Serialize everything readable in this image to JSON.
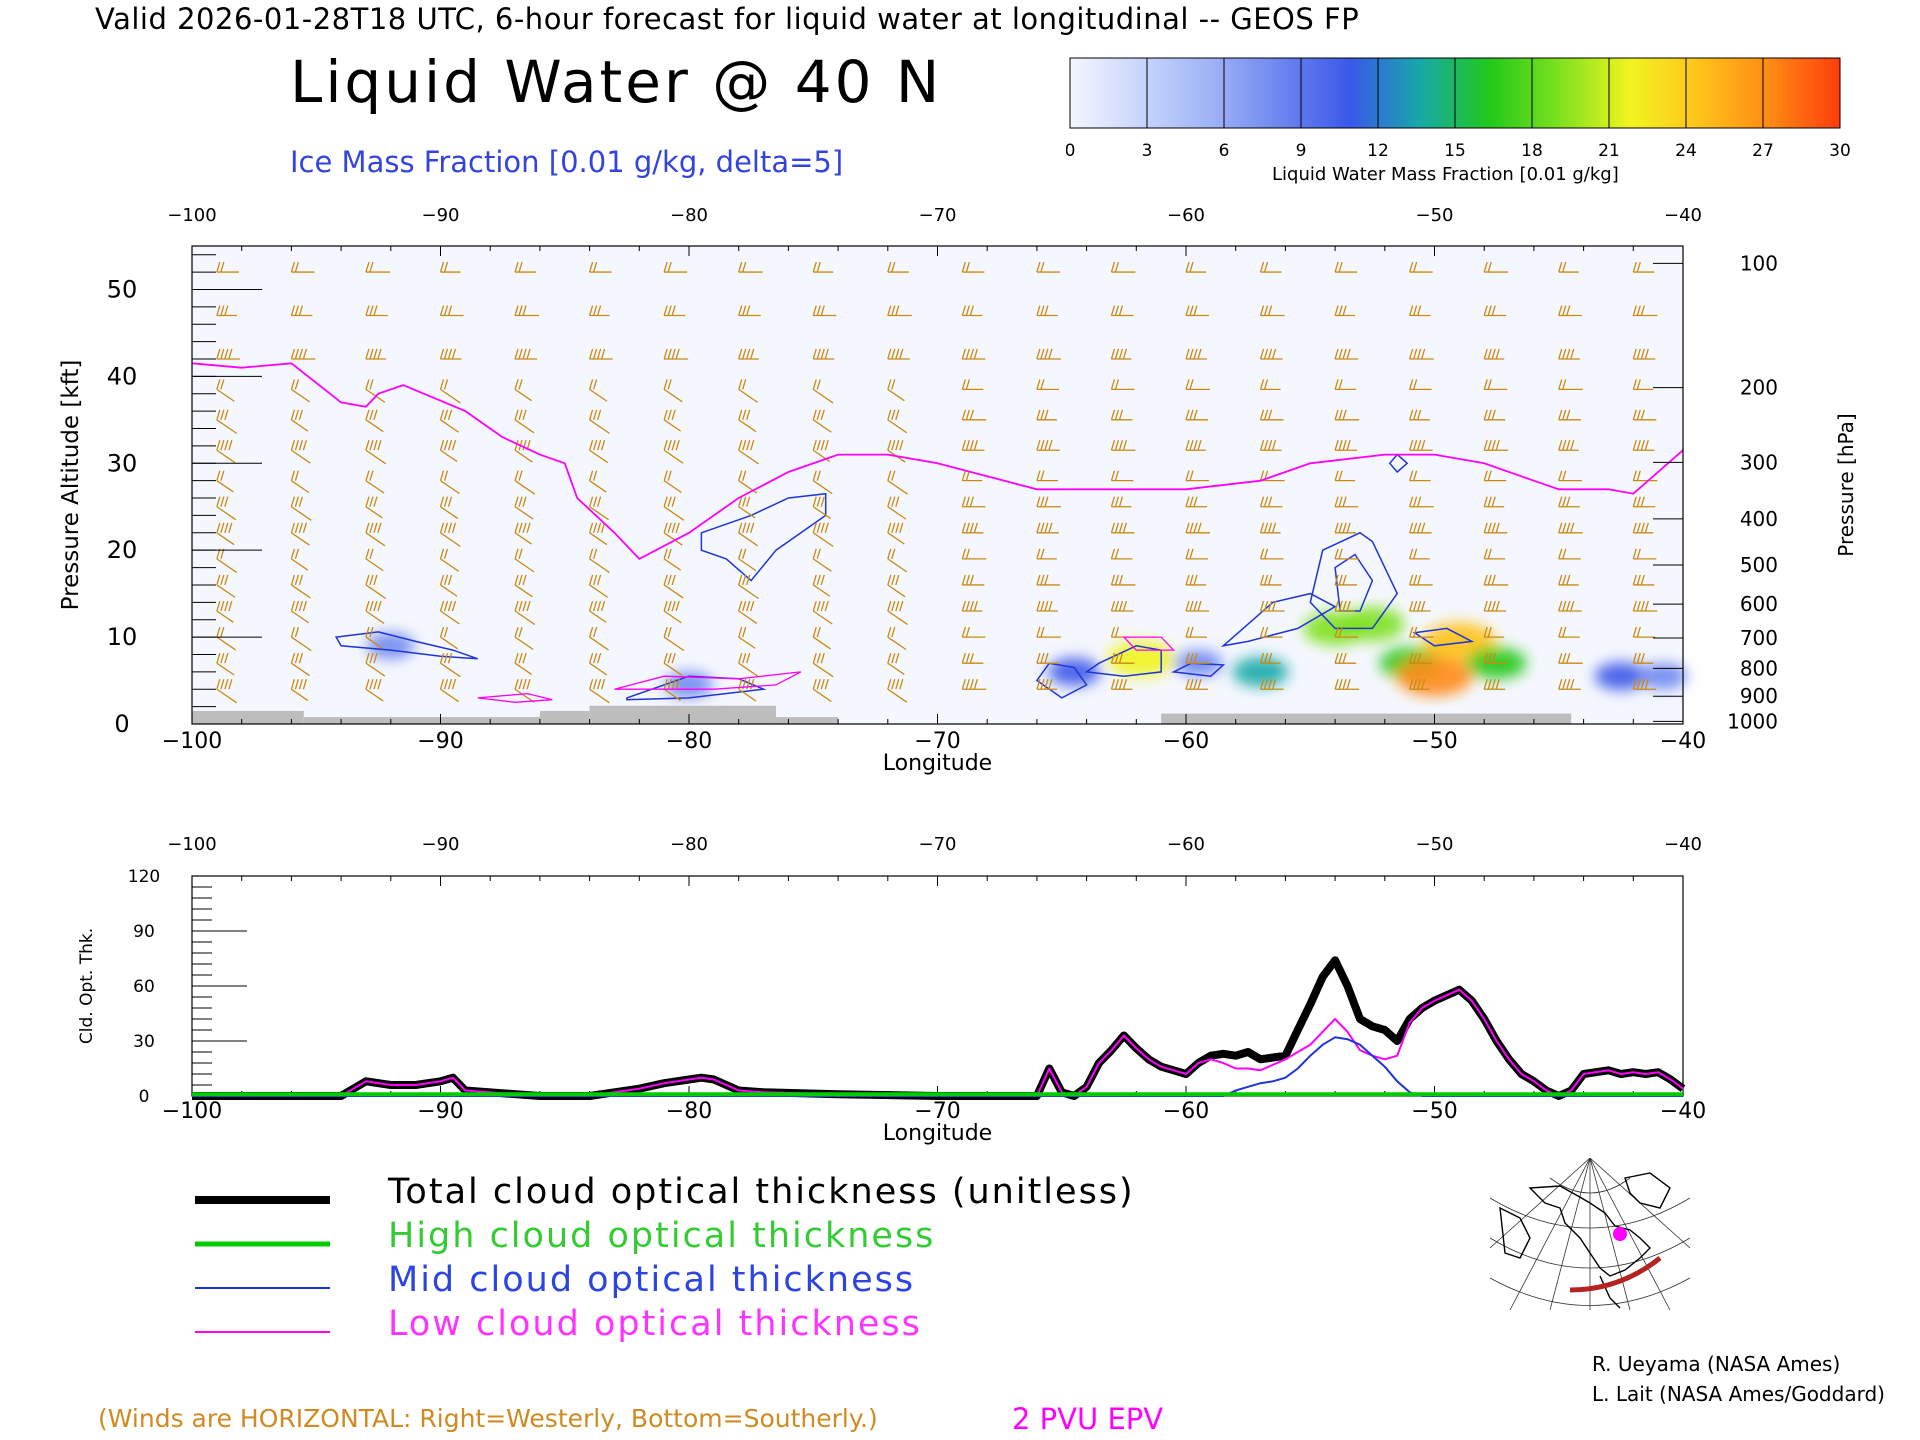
{
  "header": {
    "valid_line": "Valid 2026-01-28T18 UTC, 6-hour forecast for liquid water at longitudinal -- GEOS FP",
    "title": "Liquid Water @ 40 N",
    "ice_label": "Ice Mass Fraction [0.01 g/kg, delta=5]"
  },
  "colors": {
    "ice_contour": "#1f35d6",
    "wind_barb": "#c98a12",
    "epv": "#ff00ff",
    "total": "#000000",
    "high": "#00cc00",
    "mid": "#1f35d6",
    "low": "#ff00ff",
    "terrain": "#bdbdbd"
  },
  "colorbar": {
    "title": "Liquid Water Mass Fraction [0.01 g/kg]",
    "ticks": [
      "0",
      "3",
      "6",
      "9",
      "12",
      "15",
      "18",
      "21",
      "24",
      "27",
      "30"
    ],
    "colors": [
      "#f4f6ff",
      "#c8d6fb",
      "#9fb3f6",
      "#6d86f0",
      "#3a58e8",
      "#18a8a8",
      "#22c81a",
      "#7ee11f",
      "#f1f420",
      "#ffc21b",
      "#ff8a14",
      "#ff3c0c"
    ]
  },
  "chart_data": [
    {
      "type": "heatmap",
      "title": "Liquid Water @ 40 N",
      "xlabel": "Longitude",
      "ylabel": "Pressure Altitude [kft]",
      "y2label": "Pressure [hPa]",
      "xlim": [
        -100,
        -40
      ],
      "ylim": [
        0,
        55
      ],
      "x_ticks": [
        "-100",
        "-90",
        "-80",
        "-70",
        "-60",
        "-50",
        "-40"
      ],
      "y_ticks": [
        "0",
        "10",
        "20",
        "30",
        "40",
        "50"
      ],
      "pressure_ticks": [
        {
          "label": "100",
          "kft": 53.0
        },
        {
          "label": "200",
          "kft": 38.7
        },
        {
          "label": "300",
          "kft": 30.1
        },
        {
          "label": "400",
          "kft": 23.6
        },
        {
          "label": "500",
          "kft": 18.3
        },
        {
          "label": "600",
          "kft": 13.8
        },
        {
          "label": "700",
          "kft": 9.9
        },
        {
          "label": "800",
          "kft": 6.4
        },
        {
          "label": "900",
          "kft": 3.2
        },
        {
          "label": "1000",
          "kft": 0.3
        }
      ],
      "epv_2pvu_kft": [
        [
          -100,
          41.5
        ],
        [
          -98,
          41
        ],
        [
          -96,
          41.5
        ],
        [
          -94,
          37
        ],
        [
          -93,
          36.5
        ],
        [
          -92.5,
          38
        ],
        [
          -91.5,
          39
        ],
        [
          -89,
          36
        ],
        [
          -87.5,
          33
        ],
        [
          -86,
          31
        ],
        [
          -85,
          30
        ],
        [
          -84.5,
          26
        ],
        [
          -83,
          22
        ],
        [
          -82,
          19
        ],
        [
          -80,
          22
        ],
        [
          -78,
          26
        ],
        [
          -76,
          29
        ],
        [
          -74,
          31
        ],
        [
          -72,
          31
        ],
        [
          -70,
          30
        ],
        [
          -66,
          27
        ],
        [
          -60,
          27
        ],
        [
          -57,
          28
        ],
        [
          -55,
          30
        ],
        [
          -52,
          31
        ],
        [
          -50,
          31
        ],
        [
          -48,
          30
        ],
        [
          -46,
          28
        ],
        [
          -45,
          27
        ],
        [
          -43,
          27
        ],
        [
          -42,
          26.5
        ],
        [
          -40,
          31.5
        ]
      ],
      "liquid_water_blobs": [
        {
          "lon": -92.0,
          "kft": 9.0,
          "level": 3
        },
        {
          "lon": -80.0,
          "kft": 4.5,
          "level": 3
        },
        {
          "lon": -64.5,
          "kft": 6.0,
          "level": 4
        },
        {
          "lon": -61.8,
          "kft": 7.5,
          "level": 8
        },
        {
          "lon": -59.5,
          "kft": 7.0,
          "level": 3
        },
        {
          "lon": -57.0,
          "kft": 6.0,
          "level": 5
        },
        {
          "lon": -54.0,
          "kft": 11.0,
          "level": 7
        },
        {
          "lon": -52.5,
          "kft": 11.5,
          "level": 7
        },
        {
          "lon": -51.0,
          "kft": 7.0,
          "level": 6
        },
        {
          "lon": -50.0,
          "kft": 5.5,
          "level": 10
        },
        {
          "lon": -49.0,
          "kft": 9.5,
          "level": 9
        },
        {
          "lon": -47.5,
          "kft": 7.0,
          "level": 6
        },
        {
          "lon": -42.5,
          "kft": 5.5,
          "level": 4
        },
        {
          "lon": -40.8,
          "kft": 5.5,
          "level": 3
        }
      ]
    },
    {
      "type": "line",
      "xlabel": "Longitude",
      "ylabel": "Cld. Opt. Thk.",
      "xlim": [
        -100,
        -40
      ],
      "ylim": [
        0,
        120
      ],
      "x_ticks": [
        "-100",
        "-90",
        "-80",
        "-70",
        "-60",
        "-50",
        "-40"
      ],
      "y_ticks": [
        "0",
        "30",
        "60",
        "90",
        "120"
      ],
      "x": [
        -100,
        -96,
        -95,
        -94,
        -93,
        -92,
        -91,
        -90,
        -89.5,
        -89,
        -86,
        -84,
        -83,
        -82,
        -81,
        -80,
        -79.5,
        -79,
        -78,
        -77,
        -74,
        -70,
        -66,
        -65.5,
        -65,
        -64.5,
        -64,
        -63.5,
        -63,
        -62.5,
        -62,
        -61.5,
        -61,
        -60.5,
        -60,
        -59.5,
        -59,
        -58.5,
        -58,
        -57.5,
        -57,
        -56.5,
        -56,
        -55.5,
        -55,
        -54.5,
        -54,
        -53.5,
        -53,
        -52.5,
        -52,
        -51.5,
        -51,
        -50.5,
        -50,
        -49.5,
        -49,
        -48.5,
        -48,
        -47.5,
        -47,
        -46.5,
        -46,
        -45.5,
        -45,
        -44.5,
        -44,
        -43,
        -42.5,
        -42,
        -41.5,
        -41,
        -40.5,
        -40
      ],
      "series": [
        {
          "name": "Total cloud optical thickness (unitless)",
          "width": 8,
          "values": [
            0,
            0,
            0,
            0,
            8,
            6,
            6,
            8,
            10,
            3,
            0,
            0,
            2,
            4,
            7,
            9,
            10,
            9,
            3,
            2,
            1,
            0,
            0,
            15,
            2,
            0,
            5,
            18,
            25,
            33,
            26,
            20,
            16,
            14,
            12,
            18,
            22,
            23,
            22,
            24,
            20,
            21,
            22,
            36,
            50,
            65,
            74,
            60,
            42,
            38,
            36,
            30,
            42,
            48,
            52,
            55,
            58,
            52,
            42,
            30,
            20,
            12,
            8,
            3,
            0,
            3,
            12,
            14,
            12,
            13,
            12,
            13,
            9,
            4
          ]
        },
        {
          "name": "High cloud optical thickness",
          "width": 4,
          "values": [
            1,
            1,
            1,
            1,
            1,
            1,
            1,
            1,
            1,
            1,
            1,
            1,
            1,
            1,
            1,
            1,
            1,
            1,
            1,
            1,
            1,
            1,
            1,
            1,
            1,
            1,
            1,
            1,
            1,
            1,
            1,
            1,
            1,
            1,
            1,
            1,
            1,
            1,
            1,
            1,
            1,
            1,
            1,
            1,
            1,
            1,
            1,
            1,
            1,
            1,
            1,
            1,
            1,
            1,
            1,
            1,
            1,
            1,
            1,
            1,
            1,
            1,
            1,
            1,
            1,
            1,
            1,
            1,
            1,
            1,
            1,
            1,
            1,
            1
          ]
        },
        {
          "name": "Mid cloud optical thickness",
          "width": 2,
          "values": [
            0,
            0,
            0,
            0,
            0,
            0,
            0,
            0,
            0,
            0,
            0,
            0,
            0,
            0,
            0,
            0,
            0,
            0,
            0,
            0,
            0,
            0,
            0,
            0,
            0,
            0,
            0,
            0,
            0,
            0,
            0,
            0,
            0,
            0,
            0,
            0,
            0,
            0,
            3,
            5,
            7,
            8,
            10,
            15,
            22,
            28,
            32,
            31,
            28,
            22,
            16,
            8,
            2,
            0,
            0,
            0,
            0,
            0,
            0,
            0,
            0,
            0,
            0,
            0,
            0,
            0,
            0,
            0,
            0,
            0,
            0,
            0,
            0,
            0
          ]
        },
        {
          "name": "Low cloud optical thickness",
          "width": 2,
          "values": [
            0,
            0,
            0,
            0,
            8,
            6,
            6,
            8,
            10,
            3,
            0,
            0,
            2,
            4,
            7,
            9,
            10,
            9,
            3,
            2,
            1,
            0,
            0,
            15,
            2,
            0,
            5,
            18,
            25,
            33,
            26,
            20,
            16,
            14,
            12,
            18,
            20,
            18,
            15,
            15,
            14,
            17,
            20,
            24,
            28,
            35,
            42,
            35,
            25,
            22,
            20,
            22,
            40,
            48,
            52,
            55,
            58,
            52,
            42,
            30,
            20,
            12,
            8,
            3,
            0,
            3,
            12,
            14,
            12,
            13,
            12,
            13,
            9,
            4
          ]
        }
      ]
    }
  ],
  "legend": {
    "total": "Total cloud optical thickness (unitless)",
    "high": "High cloud optical thickness",
    "mid": "Mid cloud optical thickness",
    "low": "Low cloud optical thickness"
  },
  "credits": {
    "line1": "R. Ueyama (NASA Ames)",
    "line2": "L. Lait (NASA Ames/Goddard)"
  },
  "wind_note": "(Winds are HORIZONTAL: Right=Westerly, Bottom=Southerly.)",
  "pvu_label": "2 PVU EPV"
}
